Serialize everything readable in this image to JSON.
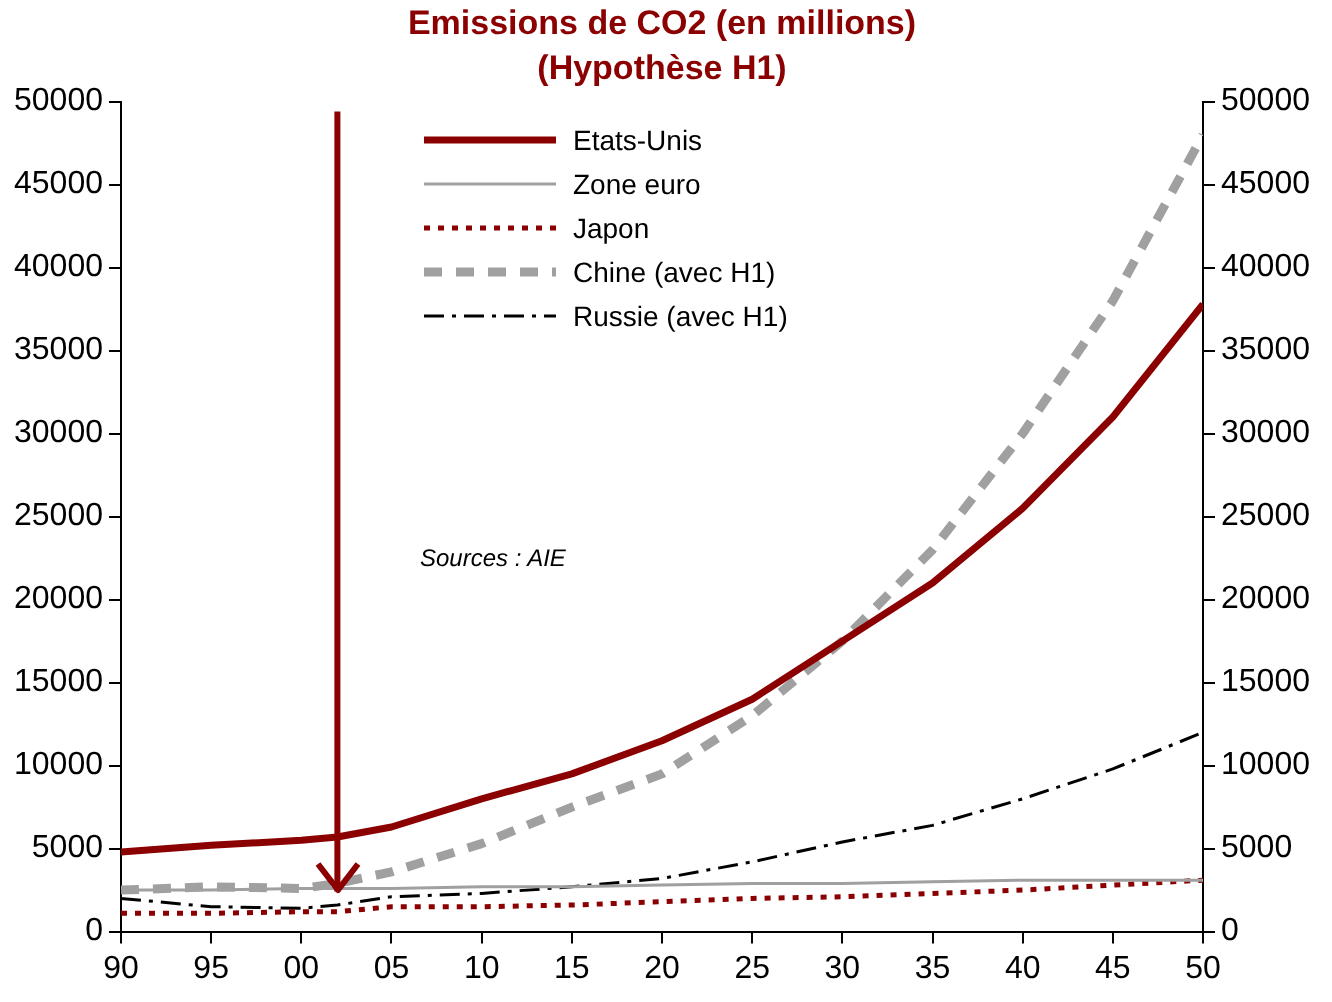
{
  "chart_data": {
    "type": "line",
    "title": "Emissions de CO2 (en millions)",
    "subtitle": "(Hypothèse H1)",
    "xlim": [
      1990,
      2050
    ],
    "xticks": [
      {
        "value": 1990,
        "label": "90"
      },
      {
        "value": 1995,
        "label": "95"
      },
      {
        "value": 2000,
        "label": "00"
      },
      {
        "value": 2005,
        "label": "05"
      },
      {
        "value": 2010,
        "label": "10"
      },
      {
        "value": 2015,
        "label": "15"
      },
      {
        "value": 2020,
        "label": "20"
      },
      {
        "value": 2025,
        "label": "25"
      },
      {
        "value": 2030,
        "label": "30"
      },
      {
        "value": 2035,
        "label": "35"
      },
      {
        "value": 2040,
        "label": "40"
      },
      {
        "value": 2045,
        "label": "45"
      },
      {
        "value": 2050,
        "label": "50"
      }
    ],
    "ylim": [
      0,
      50000
    ],
    "yticks": [
      0,
      5000,
      10000,
      15000,
      20000,
      25000,
      30000,
      35000,
      40000,
      45000,
      50000
    ],
    "y2lim": [
      0,
      50000
    ],
    "y2ticks": [
      0,
      5000,
      10000,
      15000,
      20000,
      25000,
      30000,
      35000,
      40000,
      45000,
      50000
    ],
    "x": [
      1990,
      1995,
      2000,
      2002,
      2005,
      2010,
      2015,
      2020,
      2025,
      2030,
      2035,
      2040,
      2045,
      2050
    ],
    "series": [
      {
        "name": "Etats-Unis",
        "color": "#8b0000",
        "line_style": "solid",
        "values": [
          4800,
          5200,
          5500,
          5700,
          6300,
          8000,
          9500,
          11500,
          14000,
          17500,
          21000,
          25500,
          31000,
          37800
        ]
      },
      {
        "name": "Zone euro",
        "color": "#a0a0a0",
        "line_style": "solid",
        "values": [
          2500,
          2500,
          2600,
          2600,
          2600,
          2700,
          2700,
          2800,
          2900,
          2900,
          3000,
          3100,
          3100,
          3100
        ]
      },
      {
        "name": "Japon",
        "color": "#8b0000",
        "line_style": "dotted",
        "values": [
          1100,
          1100,
          1200,
          1200,
          1500,
          1500,
          1600,
          1800,
          2000,
          2100,
          2300,
          2500,
          2800,
          3100
        ]
      },
      {
        "name": "Chine (avec H1)",
        "color": "#a0a0a0",
        "line_style": "dashed",
        "values": [
          2500,
          2700,
          2600,
          2900,
          3600,
          5300,
          7500,
          9500,
          13000,
          17500,
          23000,
          30000,
          38000,
          48000
        ]
      },
      {
        "name": "Russie (avec H1)",
        "color": "#000000",
        "line_style": "dashed",
        "values": [
          2000,
          1500,
          1400,
          1600,
          2100,
          2300,
          2700,
          3200,
          4200,
          5400,
          6400,
          8000,
          9800,
          12000
        ]
      }
    ],
    "ref_lines": [
      {
        "axis": "x",
        "value": 2002,
        "color": "#8b0000"
      }
    ],
    "legend": "top",
    "grid": false,
    "marker": "none",
    "annotations": [
      "Sources : AIE"
    ]
  }
}
